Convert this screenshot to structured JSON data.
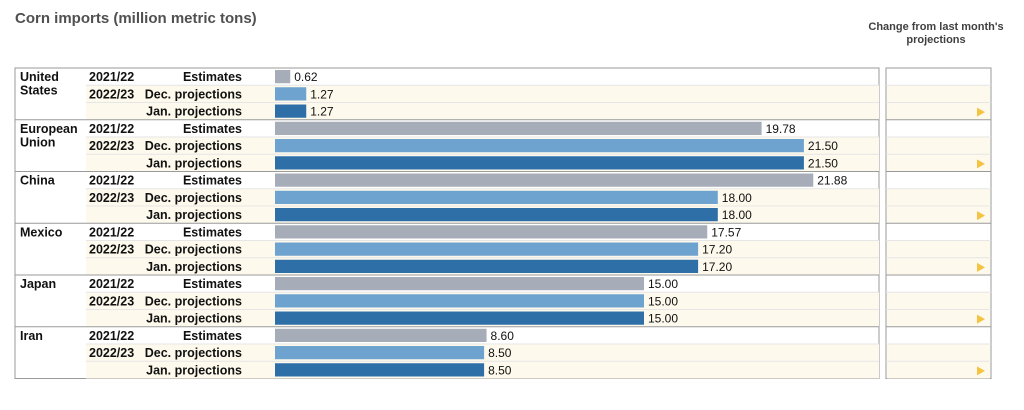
{
  "chart_data": {
    "type": "bar",
    "title": "Corn imports (million metric tons)",
    "change_header": "Change from last month's projections",
    "series": [
      {
        "year": "2021/22",
        "name": "Estimates",
        "color": "#a6adb8"
      },
      {
        "year": "2022/23",
        "name": "Dec. projections",
        "color": "#6fa3cf"
      },
      {
        "year": "",
        "name": "Jan. projections",
        "color": "#2f6fa8"
      }
    ],
    "groups": [
      {
        "country": [
          "United",
          "States"
        ],
        "values": [
          0.62,
          1.27,
          1.27
        ],
        "labels": [
          "0.62",
          "1.27",
          "1.27"
        ]
      },
      {
        "country": [
          "European",
          "Union"
        ],
        "values": [
          19.78,
          21.5,
          21.5
        ],
        "labels": [
          "19.78",
          "21.50",
          "21.50"
        ]
      },
      {
        "country": [
          "China"
        ],
        "values": [
          21.88,
          18.0,
          18.0
        ],
        "labels": [
          "21.88",
          "18.00",
          "18.00"
        ]
      },
      {
        "country": [
          "Mexico"
        ],
        "values": [
          17.57,
          17.2,
          17.2
        ],
        "labels": [
          "17.57",
          "17.20",
          "17.20"
        ]
      },
      {
        "country": [
          "Japan"
        ],
        "values": [
          15.0,
          15.0,
          15.0
        ],
        "labels": [
          "15.00",
          "15.00",
          "15.00"
        ]
      },
      {
        "country": [
          "Iran"
        ],
        "values": [
          8.6,
          8.5,
          8.5
        ],
        "labels": [
          "8.60",
          "8.50",
          "8.50"
        ]
      }
    ],
    "change_marker_color": "#f5c242",
    "x_range": [
      0,
      22
    ]
  }
}
